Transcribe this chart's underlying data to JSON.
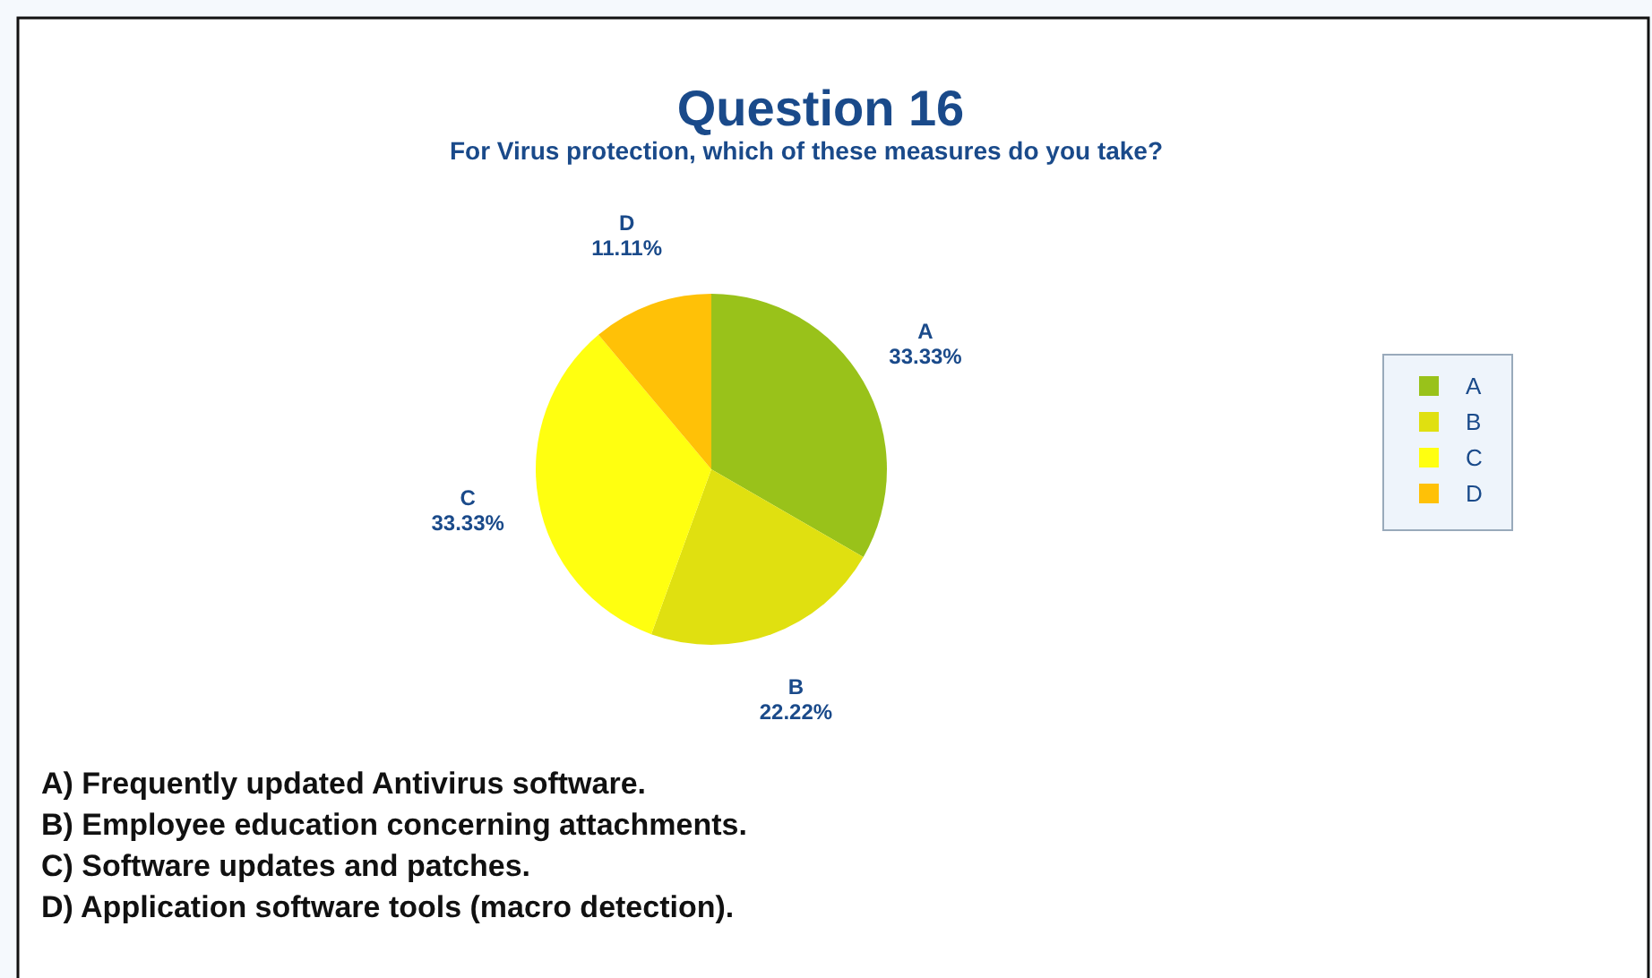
{
  "chart_data": {
    "type": "pie",
    "title": "Question 16",
    "subtitle": "For Virus protection, which of these measures do you take?",
    "categories": [
      "A",
      "B",
      "C",
      "D"
    ],
    "values": [
      33.33,
      22.22,
      33.33,
      11.11
    ],
    "colors": [
      "#99c21a",
      "#e0e010",
      "#ffff10",
      "#ffc107"
    ],
    "value_labels": [
      "33.33%",
      "22.22%",
      "33.33%",
      "11.11%"
    ],
    "legend": "right",
    "annotations": [
      "A) Frequently updated Antivirus software.",
      "B) Employee education concerning attachments.",
      "C) Software updates and patches.",
      "D) Application software tools (macro detection)."
    ]
  }
}
